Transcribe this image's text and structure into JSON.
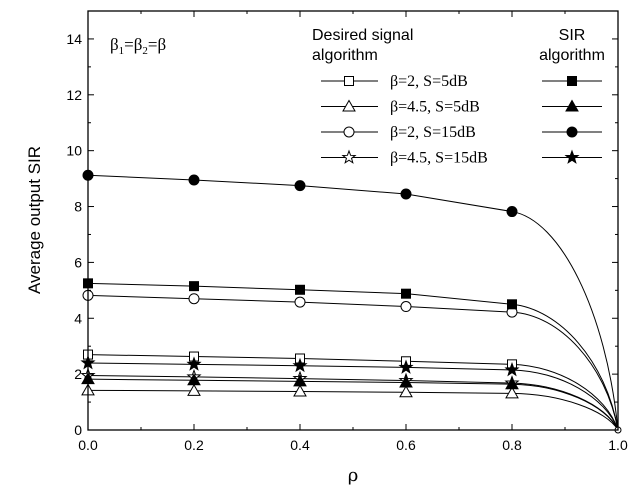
{
  "chart_data": {
    "type": "line",
    "title": "",
    "xlabel": "ρ",
    "ylabel": "Average output SIR",
    "xlim": [
      0.0,
      1.0
    ],
    "ylim": [
      0,
      15
    ],
    "xticks": [
      "0.0",
      "0.2",
      "0.4",
      "0.6",
      "0.8",
      "1.0"
    ],
    "yticks": [
      "0",
      "2",
      "4",
      "6",
      "8",
      "10",
      "12",
      "14"
    ],
    "grid": false,
    "annotation": "β1=β2=β",
    "legend": {
      "placement": "top-right",
      "left_header": "Desired signal\nalgorithm",
      "right_header": "SIR\nalgorithm",
      "rows": [
        {
          "label": "β=2, S=5dB",
          "left_marker": "square-open",
          "right_marker": "square-filled"
        },
        {
          "label": "β=4.5, S=5dB",
          "left_marker": "triangle-open",
          "right_marker": "triangle-filled"
        },
        {
          "label": "β=2, S=15dB",
          "left_marker": "circle-open",
          "right_marker": "circle-filled"
        },
        {
          "label": "β=4.5, S=15dB",
          "left_marker": "star-open",
          "right_marker": "star-filled"
        }
      ]
    },
    "x": [
      0.0,
      0.2,
      0.4,
      0.6,
      0.8
    ],
    "series": [
      {
        "values": [
          2.7,
          2.63,
          2.56,
          2.46,
          2.35
        ],
        "marker": "square-open",
        "endpoint": [
          1.0,
          0.0
        ]
      },
      {
        "values": [
          1.42,
          1.4,
          1.38,
          1.35,
          1.31
        ],
        "marker": "triangle-open",
        "endpoint": [
          1.0,
          0.0
        ]
      },
      {
        "values": [
          4.82,
          4.7,
          4.58,
          4.42,
          4.22
        ],
        "marker": "circle-open",
        "endpoint": [
          1.0,
          0.0
        ]
      },
      {
        "values": [
          1.95,
          1.9,
          1.84,
          1.77,
          1.68
        ],
        "marker": "star-open",
        "endpoint": [
          1.0,
          0.0
        ]
      },
      {
        "values": [
          5.25,
          5.15,
          5.02,
          4.88,
          4.5
        ],
        "marker": "square-filled",
        "endpoint": [
          1.0,
          0.0
        ]
      },
      {
        "values": [
          1.82,
          1.78,
          1.74,
          1.7,
          1.64
        ],
        "marker": "triangle-filled",
        "endpoint": [
          1.0,
          0.0
        ]
      },
      {
        "values": [
          9.12,
          8.95,
          8.75,
          8.45,
          7.82
        ],
        "marker": "circle-filled",
        "endpoint": [
          1.0,
          0.0
        ]
      },
      {
        "values": [
          2.4,
          2.35,
          2.3,
          2.24,
          2.15
        ],
        "marker": "star-filled",
        "endpoint": [
          1.0,
          0.0
        ]
      }
    ]
  }
}
